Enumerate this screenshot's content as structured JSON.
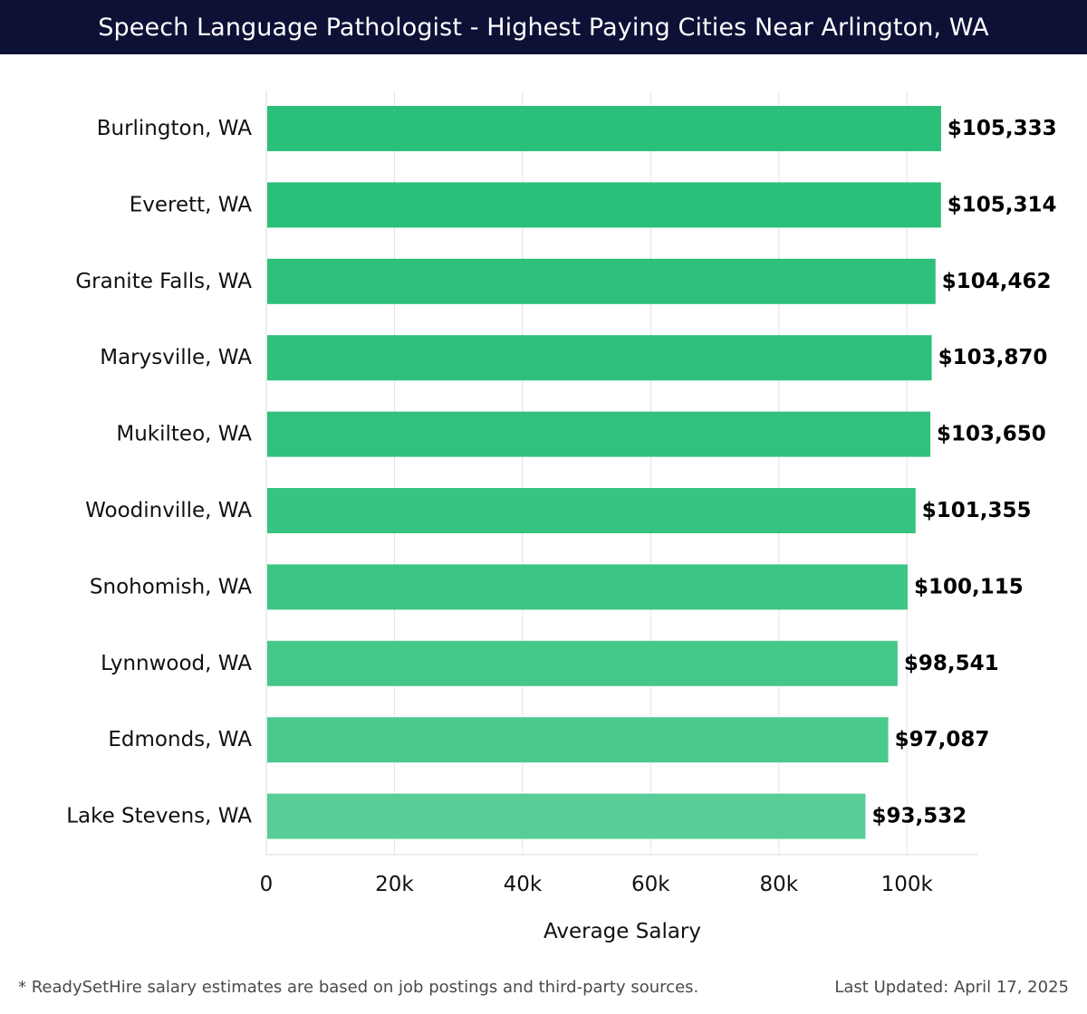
{
  "header": {
    "title": "Speech Language Pathologist - Highest Paying Cities Near Arlington, WA"
  },
  "chart_data": {
    "type": "bar",
    "orientation": "horizontal",
    "categories": [
      "Burlington, WA",
      "Everett, WA",
      "Granite Falls, WA",
      "Marysville, WA",
      "Mukilteo, WA",
      "Woodinville, WA",
      "Snohomish, WA",
      "Lynnwood, WA",
      "Edmonds, WA",
      "Lake Stevens, WA"
    ],
    "values": [
      105333,
      105314,
      104462,
      103870,
      103650,
      101355,
      100115,
      98541,
      97087,
      93532
    ],
    "value_labels": [
      "$105,333",
      "$105,314",
      "$104,462",
      "$103,870",
      "$103,650",
      "$101,355",
      "$100,115",
      "$98,541",
      "$97,087",
      "$93,532"
    ],
    "xlabel": "Average Salary",
    "ylabel": "",
    "xlim": [
      0,
      111000
    ],
    "x_ticks": [
      0,
      20000,
      40000,
      60000,
      80000,
      100000
    ],
    "x_tick_labels": [
      "0",
      "20k",
      "40k",
      "60k",
      "80k",
      "100k"
    ],
    "grid": "vertical",
    "bar_colors": [
      "#2ac079",
      "#2ac079",
      "#2dc07b",
      "#2fc17c",
      "#31c17e",
      "#37c381",
      "#3cc584",
      "#46c78a",
      "#4ac98d",
      "#58cd97"
    ]
  },
  "footer": {
    "note": "* ReadySetHire salary estimates are based on job postings and third-party sources.",
    "updated": "Last Updated: April 17, 2025"
  }
}
